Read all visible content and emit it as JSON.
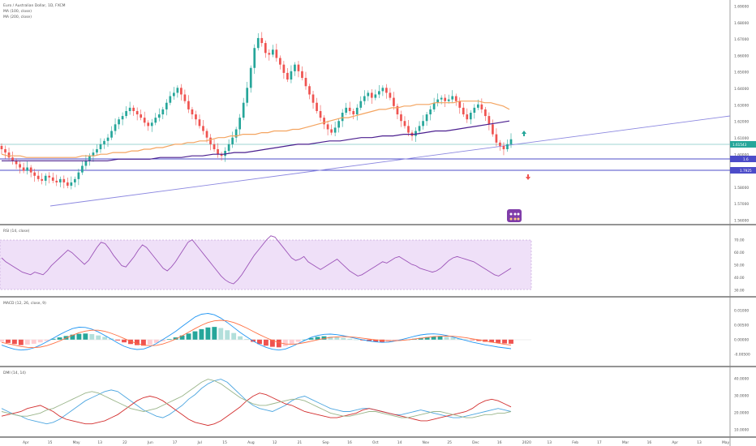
{
  "header": {
    "symbol_line": "Euro / Australian Dollar, 1D, FXCM",
    "ma1_label": "MA (100, close)",
    "ma2_label": "MA (200, close)"
  },
  "tags": {
    "current_price": "1.61543",
    "level_1": "1.6",
    "level_2": "1.7925"
  },
  "indicators": {
    "rsi_label": "RSI (14, close)",
    "macd_label": "MACD (12, 26, close, 9)",
    "dmi_label": "DMI (14, 14)"
  },
  "axes": {
    "price_ticks": [
      "1.69000",
      "1.68000",
      "1.67000",
      "1.66000",
      "1.65000",
      "1.64000",
      "1.63000",
      "1.62000",
      "1.61000",
      "1.60000",
      "1.59000",
      "1.58000",
      "1.57000",
      "1.56000"
    ],
    "rsi_ticks": [
      "70.00",
      "60.00",
      "50.00",
      "40.00",
      "30.00"
    ],
    "macd_ticks": [
      "0.01000",
      "0.00500",
      "0.00000",
      "-0.00500"
    ],
    "dmi_ticks": [
      "40.0000",
      "30.0000",
      "20.0000",
      "10.0000"
    ],
    "time_labels": [
      "Apr",
      "15",
      "May",
      "13",
      "22",
      "Jun",
      "17",
      "Jul",
      "15",
      "Aug",
      "12",
      "21",
      "Sep",
      "16",
      "Oct",
      "14",
      "Nov",
      "25",
      "Dec",
      "16",
      "2020",
      "13",
      "Feb",
      "17",
      "Mar",
      "16",
      "Apr",
      "13",
      "May"
    ]
  },
  "chart_data": {
    "type": "candlestick",
    "title": "Euro / Australian Dollar, 1D, FXCM",
    "price_range": [
      1.56,
      1.69
    ],
    "closes": [
      1.603,
      1.601,
      1.598,
      1.596,
      1.594,
      1.592,
      1.59,
      1.592,
      1.589,
      1.587,
      1.585,
      1.584,
      1.587,
      1.586,
      1.584,
      1.583,
      1.585,
      1.583,
      1.581,
      1.583,
      1.585,
      1.589,
      1.593,
      1.596,
      1.599,
      1.601,
      1.603,
      1.606,
      1.608,
      1.61,
      1.614,
      1.618,
      1.621,
      1.623,
      1.626,
      1.628,
      1.626,
      1.624,
      1.622,
      1.619,
      1.617,
      1.619,
      1.622,
      1.624,
      1.627,
      1.631,
      1.635,
      1.637,
      1.64,
      1.636,
      1.632,
      1.627,
      1.624,
      1.621,
      1.617,
      1.614,
      1.61,
      1.606,
      1.603,
      1.6,
      1.599,
      1.602,
      1.606,
      1.61,
      1.615,
      1.622,
      1.631,
      1.64,
      1.652,
      1.664,
      1.67,
      1.667,
      1.661,
      1.66,
      1.663,
      1.658,
      1.654,
      1.649,
      1.645,
      1.65,
      1.654,
      1.65,
      1.646,
      1.641,
      1.636,
      1.631,
      1.626,
      1.622,
      1.618,
      1.615,
      1.613,
      1.616,
      1.62,
      1.625,
      1.628,
      1.626,
      1.624,
      1.628,
      1.632,
      1.635,
      1.637,
      1.634,
      1.636,
      1.638,
      1.64,
      1.637,
      1.634,
      1.629,
      1.624,
      1.62,
      1.617,
      1.613,
      1.611,
      1.614,
      1.617,
      1.62,
      1.624,
      1.627,
      1.631,
      1.633,
      1.634,
      1.632,
      1.633,
      1.635,
      1.632,
      1.628,
      1.624,
      1.621,
      1.625,
      1.628,
      1.63,
      1.627,
      1.623,
      1.618,
      1.612,
      1.607,
      1.605,
      1.603,
      1.606,
      1.609
    ],
    "ma100": [
      1.6,
      1.599,
      1.599,
      1.599,
      1.598,
      1.598,
      1.598,
      1.598,
      1.598,
      1.598,
      1.598,
      1.598,
      1.598,
      1.599,
      1.599,
      1.599,
      1.6,
      1.6,
      1.601,
      1.601,
      1.601,
      1.602,
      1.602,
      1.603,
      1.603,
      1.604,
      1.604,
      1.605,
      1.606,
      1.606,
      1.607,
      1.607,
      1.608,
      1.608,
      1.609,
      1.61,
      1.61,
      1.611,
      1.611,
      1.612,
      1.612,
      1.612,
      1.613,
      1.613,
      1.614,
      1.614,
      1.614,
      1.615,
      1.615,
      1.616,
      1.617,
      1.618,
      1.619,
      1.62,
      1.621,
      1.622,
      1.622,
      1.623,
      1.624,
      1.625,
      1.626,
      1.627,
      1.627,
      1.628,
      1.628,
      1.629,
      1.629,
      1.63,
      1.63,
      1.63,
      1.631,
      1.631,
      1.631,
      1.631,
      1.632,
      1.632,
      1.632,
      1.632,
      1.631,
      1.631,
      1.63,
      1.629,
      1.627
    ],
    "ma200": [
      1.596,
      1.596,
      1.596,
      1.596,
      1.596,
      1.596,
      1.596,
      1.596,
      1.596,
      1.596,
      1.596,
      1.597,
      1.597,
      1.597,
      1.597,
      1.598,
      1.598,
      1.598,
      1.599,
      1.599,
      1.6,
      1.6,
      1.601,
      1.601,
      1.602,
      1.603,
      1.604,
      1.605,
      1.606,
      1.606,
      1.607,
      1.608,
      1.608,
      1.609,
      1.61,
      1.61,
      1.611,
      1.611,
      1.612,
      1.612,
      1.613,
      1.614,
      1.614,
      1.615,
      1.616,
      1.617,
      1.618,
      1.619,
      1.62
    ],
    "rsi_range": [
      30,
      70
    ],
    "rsi": [
      55,
      52,
      50,
      48,
      46,
      44,
      43,
      42,
      44,
      43,
      42,
      45,
      49,
      52,
      55,
      58,
      61,
      59,
      56,
      53,
      50,
      53,
      58,
      63,
      67,
      66,
      62,
      57,
      53,
      49,
      48,
      52,
      56,
      61,
      65,
      63,
      59,
      55,
      51,
      47,
      45,
      48,
      52,
      57,
      62,
      67,
      69,
      65,
      61,
      57,
      53,
      49,
      45,
      41,
      38,
      36,
      35,
      38,
      42,
      47,
      52,
      57,
      61,
      65,
      69,
      72,
      71,
      67,
      63,
      59,
      55,
      53,
      54,
      56,
      52,
      50,
      48,
      46,
      48,
      50,
      52,
      54,
      51,
      48,
      45,
      43,
      41,
      42,
      44,
      46,
      48,
      50,
      52,
      51,
      53,
      55,
      56,
      54,
      52,
      50,
      49,
      47,
      46,
      45,
      44,
      45,
      47,
      50,
      53,
      55,
      56,
      55,
      54,
      53,
      52,
      50,
      48,
      46,
      44,
      42,
      41,
      43,
      45,
      47
    ],
    "macd_range": [
      -0.008,
      0.012
    ],
    "macd_hist": [
      -0.0008,
      -0.0012,
      -0.0016,
      -0.002,
      -0.0018,
      -0.0015,
      -0.001,
      -0.0005,
      0.0003,
      0.0008,
      0.0013,
      0.0018,
      0.0021,
      0.0022,
      0.002,
      0.0015,
      0.001,
      0.0004,
      -0.0003,
      -0.001,
      -0.0016,
      -0.002,
      -0.0022,
      -0.0018,
      -0.0012,
      -0.0006,
      0.0002,
      0.0008,
      0.0015,
      0.0022,
      0.003,
      0.0038,
      0.0044,
      0.0046,
      0.0042,
      0.0034,
      0.0024,
      0.0012,
      0.0002,
      -0.0008,
      -0.0016,
      -0.0022,
      -0.0026,
      -0.0028,
      -0.0024,
      -0.0016,
      -0.0008,
      0.0,
      0.0006,
      0.001,
      0.0012,
      0.0011,
      0.0009,
      0.0006,
      0.0003,
      0.0,
      -0.0003,
      -0.0006,
      -0.0008,
      -0.0009,
      -0.0008,
      -0.0006,
      -0.0003,
      0.0,
      0.0003,
      0.0006,
      0.0009,
      0.0011,
      0.0012,
      0.001,
      0.0007,
      0.0004,
      0.0001,
      -0.0002,
      -0.0005,
      -0.0008,
      -0.001,
      -0.0012,
      -0.0014,
      -0.0015
    ],
    "macd_line": [
      -0.002,
      -0.0028,
      -0.0035,
      -0.0038,
      -0.0036,
      -0.003,
      -0.002,
      -0.0008,
      0.0005,
      0.0018,
      0.003,
      0.004,
      0.0045,
      0.0044,
      0.0038,
      0.0028,
      0.0015,
      0.0002,
      -0.0012,
      -0.0024,
      -0.0032,
      -0.0036,
      -0.0034,
      -0.0026,
      -0.0014,
      0.0,
      0.0015,
      0.003,
      0.0048,
      0.0065,
      0.0082,
      0.0092,
      0.0095,
      0.009,
      0.0078,
      0.0062,
      0.0044,
      0.0026,
      0.001,
      -0.0005,
      -0.0018,
      -0.0028,
      -0.0035,
      -0.0038,
      -0.0034,
      -0.0025,
      -0.0014,
      -0.0003,
      0.0008,
      0.0015,
      0.0019,
      0.002,
      0.0018,
      0.0014,
      0.0009,
      0.0004,
      -0.0001,
      -0.0005,
      -0.0008,
      -0.001,
      -0.0009,
      -0.0005,
      0.0,
      0.0006,
      0.0012,
      0.0017,
      0.002,
      0.0021,
      0.0019,
      0.0015,
      0.0009,
      0.0003,
      -0.0003,
      -0.0009,
      -0.0014,
      -0.0019,
      -0.0023,
      -0.0027,
      -0.003,
      -0.0033
    ],
    "signal_line": [
      -0.001,
      -0.0015,
      -0.002,
      -0.0025,
      -0.0028,
      -0.0029,
      -0.0027,
      -0.0022,
      -0.0014,
      -0.0005,
      0.0006,
      0.0016,
      0.0025,
      0.0031,
      0.0034,
      0.0034,
      0.003,
      0.0023,
      0.0014,
      0.0004,
      -0.0006,
      -0.0014,
      -0.002,
      -0.0022,
      -0.0021,
      -0.0016,
      -0.0008,
      0.0002,
      0.0014,
      0.0027,
      0.004,
      0.0052,
      0.0062,
      0.0068,
      0.007,
      0.0068,
      0.0062,
      0.0053,
      0.0042,
      0.003,
      0.0018,
      0.0007,
      -0.0003,
      -0.0011,
      -0.0016,
      -0.0017,
      -0.0015,
      -0.0011,
      -0.0006,
      -0.0001,
      0.0004,
      0.0008,
      0.001,
      0.0011,
      0.001,
      0.0008,
      0.0005,
      0.0002,
      -0.0001,
      -0.0003,
      -0.0004,
      -0.0004,
      -0.0003,
      -0.0001,
      0.0002,
      0.0005,
      0.0008,
      0.0011,
      0.0012,
      0.0013,
      0.0012,
      0.001,
      0.0007,
      0.0003,
      -0.0001,
      -0.0005,
      -0.0009,
      -0.0013,
      -0.0017,
      -0.002
    ],
    "dmi_range": [
      5,
      45
    ],
    "plus_di": [
      22,
      20,
      18,
      17,
      15,
      14,
      13,
      12,
      13,
      15,
      18,
      21,
      24,
      27,
      29,
      31,
      33,
      34,
      33,
      30,
      27,
      24,
      21,
      19,
      17,
      16,
      18,
      21,
      24,
      28,
      31,
      35,
      38,
      40,
      41,
      39,
      35,
      31,
      27,
      24,
      22,
      21,
      20,
      22,
      24,
      27,
      29,
      30,
      28,
      26,
      24,
      22,
      21,
      20,
      20,
      21,
      22,
      22,
      21,
      20,
      19,
      18,
      18,
      19,
      20,
      21,
      20,
      19,
      18,
      17,
      16,
      16,
      17,
      18,
      19,
      20,
      21,
      22,
      21,
      20
    ],
    "minus_di": [
      17,
      18,
      19,
      20,
      22,
      23,
      24,
      22,
      20,
      17,
      15,
      14,
      13,
      12,
      12,
      13,
      14,
      16,
      18,
      21,
      24,
      27,
      29,
      30,
      29,
      27,
      24,
      21,
      18,
      15,
      13,
      12,
      11,
      12,
      14,
      17,
      20,
      23,
      27,
      30,
      32,
      31,
      29,
      27,
      25,
      24,
      22,
      20,
      19,
      18,
      17,
      16,
      16,
      17,
      18,
      19,
      21,
      22,
      21,
      20,
      19,
      18,
      17,
      16,
      15,
      14,
      14,
      15,
      16,
      17,
      18,
      19,
      20,
      22,
      25,
      27,
      28,
      27,
      25,
      23
    ],
    "adx": [
      20,
      19,
      18,
      17,
      17,
      18,
      19,
      21,
      22,
      24,
      26,
      28,
      30,
      32,
      33,
      32,
      30,
      28,
      26,
      24,
      22,
      21,
      20,
      21,
      22,
      24,
      26,
      28,
      30,
      33,
      36,
      39,
      41,
      40,
      38,
      35,
      32,
      29,
      27,
      25,
      24,
      24,
      25,
      26,
      27,
      28,
      28,
      27,
      25,
      23,
      21,
      19,
      18,
      17,
      17,
      18,
      19,
      20,
      20,
      19,
      18,
      17,
      16,
      16,
      17,
      18,
      19,
      20,
      20,
      19,
      18,
      17,
      16,
      16,
      17,
      18,
      18,
      19,
      19,
      20
    ]
  }
}
